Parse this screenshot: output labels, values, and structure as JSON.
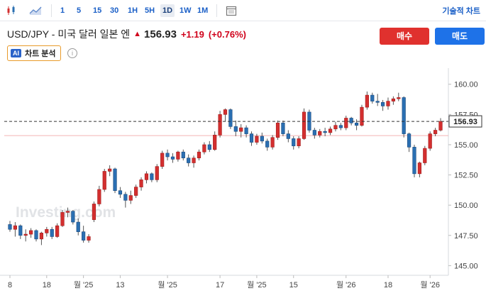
{
  "toolbar": {
    "intervals": [
      "1",
      "5",
      "15",
      "30",
      "1H",
      "5H",
      "1D",
      "1W",
      "1M"
    ],
    "active_interval": "1D",
    "tech_chart": "기술적 차트"
  },
  "header": {
    "symbol": "USD/JPY - 미국 달러 일본 엔",
    "price": "156.93",
    "change": "+1.19",
    "change_pct": "(+0.76%)",
    "buy": "매수",
    "sell": "매도",
    "analysis": "차트 분석",
    "ai": "AI"
  },
  "colors": {
    "up": "#d32f2f",
    "down": "#2a6fb2",
    "accent": "#1a5fc7"
  },
  "chart_data": {
    "type": "candlestick",
    "watermark": "Investing.com",
    "last_price_label": "156.93",
    "reference_price": 155.75,
    "ylim": [
      144.2,
      161.1
    ],
    "y_ticks": [
      145.0,
      147.5,
      150.0,
      152.5,
      155.0,
      157.5,
      160.0
    ],
    "y_tick_labels": [
      "145.00",
      "147.50",
      "150.00",
      "152.50",
      "155.00",
      "157.50",
      "160.00"
    ],
    "x_ticks": [
      {
        "label": "8",
        "i": 0
      },
      {
        "label": "18",
        "i": 7
      },
      {
        "label": "월 '25",
        "i": 14
      },
      {
        "label": "13",
        "i": 21
      },
      {
        "label": "월 '25",
        "i": 30
      },
      {
        "label": "17",
        "i": 40
      },
      {
        "label": "월 '25",
        "i": 47
      },
      {
        "label": "15",
        "i": 54
      },
      {
        "label": "월 '26",
        "i": 64
      },
      {
        "label": "18",
        "i": 72
      },
      {
        "label": "월 '26",
        "i": 80
      }
    ],
    "candles": [
      [
        148.4,
        148.7,
        147.8,
        148.0
      ],
      [
        148.0,
        148.6,
        147.4,
        148.3
      ],
      [
        148.3,
        148.4,
        147.2,
        147.5
      ],
      [
        147.5,
        148.0,
        147.0,
        147.6
      ],
      [
        147.6,
        148.1,
        147.3,
        147.9
      ],
      [
        147.9,
        148.0,
        147.0,
        147.2
      ],
      [
        147.2,
        147.8,
        146.7,
        147.7
      ],
      [
        147.7,
        148.2,
        147.4,
        148.0
      ],
      [
        148.0,
        148.2,
        147.2,
        147.4
      ],
      [
        147.4,
        148.5,
        147.3,
        148.3
      ],
      [
        148.3,
        149.6,
        148.2,
        149.4
      ],
      [
        149.4,
        149.8,
        149.0,
        149.5
      ],
      [
        149.5,
        149.6,
        148.4,
        148.6
      ],
      [
        148.6,
        148.9,
        147.5,
        147.8
      ],
      [
        147.8,
        148.3,
        146.9,
        147.1
      ],
      [
        147.1,
        147.6,
        146.9,
        147.4
      ],
      [
        148.8,
        150.3,
        148.6,
        150.1
      ],
      [
        150.1,
        151.6,
        149.9,
        151.3
      ],
      [
        151.3,
        153.0,
        151.1,
        152.8
      ],
      [
        152.8,
        153.3,
        152.4,
        153.0
      ],
      [
        153.0,
        153.1,
        151.0,
        151.2
      ],
      [
        151.2,
        151.5,
        150.6,
        150.9
      ],
      [
        150.9,
        151.1,
        149.8,
        150.4
      ],
      [
        150.4,
        151.2,
        150.1,
        150.8
      ],
      [
        150.8,
        151.7,
        150.6,
        151.5
      ],
      [
        151.5,
        152.3,
        151.2,
        152.1
      ],
      [
        152.1,
        152.8,
        151.8,
        152.6
      ],
      [
        152.6,
        152.7,
        151.9,
        152.1
      ],
      [
        152.1,
        153.4,
        151.9,
        153.2
      ],
      [
        153.2,
        154.5,
        153.0,
        154.3
      ],
      [
        154.3,
        154.6,
        153.7,
        154.0
      ],
      [
        154.0,
        154.3,
        153.5,
        153.8
      ],
      [
        153.8,
        154.5,
        153.6,
        154.4
      ],
      [
        154.4,
        154.6,
        153.7,
        153.9
      ],
      [
        153.9,
        154.2,
        153.2,
        153.5
      ],
      [
        153.5,
        154.1,
        153.1,
        153.9
      ],
      [
        153.9,
        154.6,
        153.7,
        154.4
      ],
      [
        154.4,
        155.2,
        154.2,
        155.0
      ],
      [
        155.0,
        155.3,
        154.4,
        154.6
      ],
      [
        154.6,
        156.1,
        154.5,
        155.8
      ],
      [
        155.8,
        157.8,
        155.6,
        157.5
      ],
      [
        157.5,
        158.0,
        156.9,
        157.9
      ],
      [
        157.9,
        158.0,
        156.3,
        156.5
      ],
      [
        156.5,
        157.0,
        155.7,
        156.1
      ],
      [
        156.1,
        156.7,
        155.6,
        156.4
      ],
      [
        156.4,
        156.6,
        155.6,
        155.9
      ],
      [
        155.9,
        156.1,
        154.9,
        155.2
      ],
      [
        155.2,
        155.9,
        155.0,
        155.7
      ],
      [
        155.7,
        156.0,
        155.1,
        155.3
      ],
      [
        155.3,
        155.5,
        154.5,
        154.8
      ],
      [
        154.8,
        155.8,
        154.6,
        155.6
      ],
      [
        155.6,
        157.0,
        155.4,
        156.8
      ],
      [
        156.8,
        157.0,
        155.7,
        155.9
      ],
      [
        155.9,
        156.2,
        155.2,
        155.5
      ],
      [
        155.5,
        155.7,
        154.6,
        154.9
      ],
      [
        154.9,
        155.7,
        154.7,
        155.5
      ],
      [
        155.5,
        158.0,
        155.4,
        157.7
      ],
      [
        157.7,
        157.9,
        156.0,
        156.2
      ],
      [
        156.2,
        156.4,
        155.5,
        155.8
      ],
      [
        155.8,
        156.3,
        155.6,
        156.1
      ],
      [
        156.1,
        156.4,
        155.7,
        156.0
      ],
      [
        156.0,
        156.5,
        155.8,
        156.3
      ],
      [
        156.3,
        156.9,
        156.1,
        156.6
      ],
      [
        156.6,
        156.8,
        156.2,
        156.4
      ],
      [
        156.4,
        157.4,
        156.2,
        157.2
      ],
      [
        157.2,
        157.3,
        156.6,
        156.8
      ],
      [
        156.8,
        157.1,
        156.2,
        156.6
      ],
      [
        156.6,
        158.3,
        156.5,
        158.1
      ],
      [
        158.1,
        159.4,
        157.9,
        159.1
      ],
      [
        159.1,
        159.3,
        158.4,
        158.6
      ],
      [
        158.6,
        159.2,
        158.2,
        158.5
      ],
      [
        158.5,
        158.7,
        157.8,
        158.2
      ],
      [
        158.2,
        158.9,
        157.9,
        158.6
      ],
      [
        158.6,
        159.0,
        158.3,
        158.8
      ],
      [
        158.8,
        159.3,
        158.6,
        158.9
      ],
      [
        158.9,
        159.0,
        155.6,
        155.9
      ],
      [
        155.9,
        156.0,
        154.4,
        154.8
      ],
      [
        154.8,
        155.0,
        152.3,
        152.6
      ],
      [
        152.6,
        153.6,
        152.3,
        153.5
      ],
      [
        153.5,
        154.9,
        153.3,
        154.7
      ],
      [
        154.7,
        156.1,
        154.5,
        155.9
      ],
      [
        155.9,
        156.4,
        155.7,
        156.2
      ],
      [
        156.2,
        157.2,
        156.1,
        156.93
      ]
    ]
  }
}
